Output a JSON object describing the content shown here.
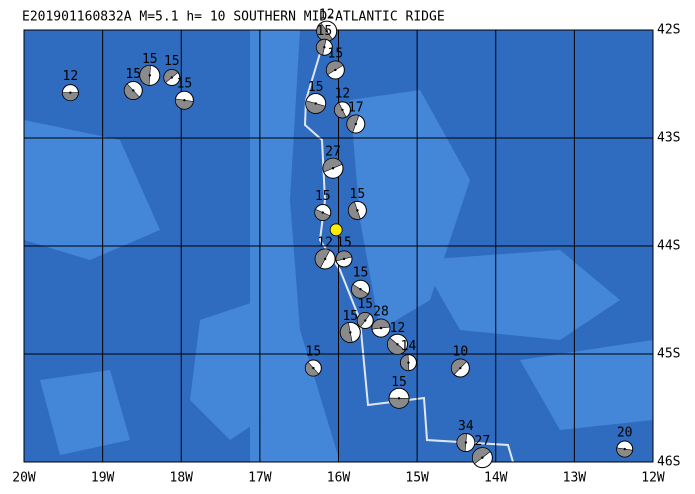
{
  "map": {
    "title": "E201901160832A M=5.1 h= 10 SOUTHERN MID-ATLANTIC RIDGE",
    "xlim": [
      -20,
      -12
    ],
    "ylim": [
      -46,
      -42
    ],
    "xticks": [
      {
        "value": -20,
        "label": "20W"
      },
      {
        "value": -19,
        "label": "19W"
      },
      {
        "value": -18,
        "label": "18W"
      },
      {
        "value": -17,
        "label": "17W"
      },
      {
        "value": -16,
        "label": "16W"
      },
      {
        "value": -15,
        "label": "15W"
      },
      {
        "value": -14,
        "label": "14W"
      },
      {
        "value": -13,
        "label": "13W"
      },
      {
        "value": -12,
        "label": "12W"
      }
    ],
    "yticks": [
      {
        "value": -42,
        "label": "42S"
      },
      {
        "value": -43,
        "label": "43S"
      },
      {
        "value": -44,
        "label": "44S"
      },
      {
        "value": -45,
        "label": "45S"
      },
      {
        "value": -46,
        "label": "46S"
      }
    ],
    "main_event": {
      "lon": -16.03,
      "lat": -43.85,
      "color": "#ffee00"
    },
    "events": [
      {
        "lon": -19.41,
        "lat": -42.58,
        "depth": 12
      },
      {
        "lon": -18.61,
        "lat": -42.56,
        "depth": 15
      },
      {
        "lon": -18.4,
        "lat": -42.42,
        "depth": 15
      },
      {
        "lon": -18.12,
        "lat": -42.44,
        "depth": 15
      },
      {
        "lon": -17.96,
        "lat": -42.65,
        "depth": 15
      },
      {
        "lon": -16.15,
        "lat": -42.01,
        "depth": 12
      },
      {
        "lon": -16.18,
        "lat": -42.16,
        "depth": 15
      },
      {
        "lon": -16.04,
        "lat": -42.37,
        "depth": 15
      },
      {
        "lon": -16.29,
        "lat": -42.68,
        "depth": 15
      },
      {
        "lon": -15.95,
        "lat": -42.74,
        "depth": 12
      },
      {
        "lon": -15.78,
        "lat": -42.87,
        "depth": 17
      },
      {
        "lon": -16.07,
        "lat": -43.28,
        "depth": 27
      },
      {
        "lon": -16.2,
        "lat": -43.69,
        "depth": 15
      },
      {
        "lon": -15.76,
        "lat": -43.67,
        "depth": 15
      },
      {
        "lon": -16.17,
        "lat": -44.12,
        "depth": 12
      },
      {
        "lon": -15.93,
        "lat": -44.12,
        "depth": 15
      },
      {
        "lon": -15.72,
        "lat": -44.4,
        "depth": 15
      },
      {
        "lon": -15.85,
        "lat": -44.8,
        "depth": 15
      },
      {
        "lon": -15.66,
        "lat": -44.69,
        "depth": 15
      },
      {
        "lon": -15.46,
        "lat": -44.76,
        "depth": 28
      },
      {
        "lon": -15.25,
        "lat": -44.91,
        "depth": 12
      },
      {
        "lon": -15.11,
        "lat": -45.08,
        "depth": 14
      },
      {
        "lon": -14.45,
        "lat": -45.13,
        "depth": 10
      },
      {
        "lon": -15.23,
        "lat": -45.41,
        "depth": 15
      },
      {
        "lon": -16.32,
        "lat": -45.13,
        "depth": 15
      },
      {
        "lon": -14.38,
        "lat": -45.82,
        "depth": 34
      },
      {
        "lon": -14.17,
        "lat": -45.96,
        "depth": 27
      },
      {
        "lon": -12.36,
        "lat": -45.88,
        "depth": 20
      }
    ]
  }
}
